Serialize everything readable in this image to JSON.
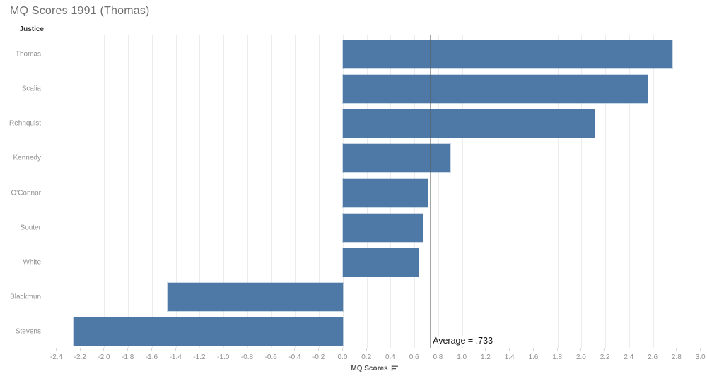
{
  "title": "MQ Scores 1991 (Thomas)",
  "colors": {
    "bar": "#4e79a7",
    "gridline": "#ececec",
    "axis_line": "#d9d9d9",
    "reference_line": "rgba(90,90,90,0.55)",
    "title_text": "#707070",
    "label_text": "#8f8f8f",
    "header_text": "#333333",
    "annotation_text": "#141414"
  },
  "icons": {
    "sort_icon": "sort-descending-icon"
  },
  "chart_data": {
    "type": "bar",
    "orientation": "horizontal",
    "title": "MQ Scores 1991 (Thomas)",
    "ylabel": "Justice",
    "xlabel": "MQ Scores",
    "categories": [
      "Thomas",
      "Scalia",
      "Rehnquist",
      "Kennedy",
      "O'Connor",
      "Souter",
      "White",
      "Blackmun",
      "Stevens"
    ],
    "values": [
      2.76,
      2.55,
      2.11,
      0.9,
      0.71,
      0.67,
      0.63,
      -1.47,
      -2.26
    ],
    "xlim": [
      -2.48,
      3.02
    ],
    "x_tick_labels": [
      "-2.4",
      "-2.2",
      "-2.0",
      "-1.8",
      "-1.6",
      "-1.4",
      "-1.2",
      "-1.0",
      "-0.8",
      "-0.6",
      "-0.4",
      "-0.2",
      "0.0",
      "0.2",
      "0.4",
      "0.6",
      "0.8",
      "1.0",
      "1.2",
      "1.4",
      "1.6",
      "1.8",
      "2.0",
      "2.2",
      "2.4",
      "2.6",
      "2.8",
      "3.0"
    ],
    "grid": true,
    "legend": false,
    "reference_line": {
      "value": 0.733,
      "label": "Average = .733"
    }
  }
}
